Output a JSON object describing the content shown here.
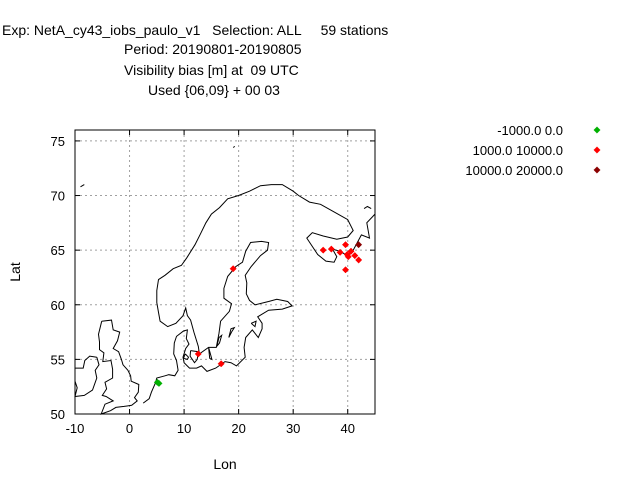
{
  "header": {
    "line1": "Exp: NetA_cy43_iobs_paulo_v1   Selection: ALL     59 stations",
    "line2": "Period: 20190801-20190805",
    "line3": "Visibility bias [m] at  09 UTC",
    "line4": "Used {06,09} + 00 03"
  },
  "chart_data": {
    "type": "scatter",
    "xlabel": "Lon",
    "ylabel": "Lat",
    "xlim": [
      -10,
      45
    ],
    "ylim": [
      50,
      76
    ],
    "xticks": [
      "-10",
      "0",
      "10",
      "20",
      "30",
      "40"
    ],
    "yticks": [
      "50",
      "55",
      "60",
      "65",
      "70",
      "75"
    ],
    "xtick_values": [
      -10,
      0,
      10,
      20,
      30,
      40
    ],
    "ytick_values": [
      50,
      55,
      60,
      65,
      70,
      75
    ],
    "grid": true,
    "legend_position": "right-outside",
    "series": [
      {
        "name": "-1000.0 0.0",
        "color": "#00b000",
        "points": [
          [
            5.1,
            52.9
          ],
          [
            5.4,
            52.8
          ]
        ]
      },
      {
        "name": "1000.0 10000.0",
        "color": "#ff0000",
        "points": [
          [
            12.6,
            55.5
          ],
          [
            16.8,
            54.6
          ],
          [
            19.0,
            63.3
          ],
          [
            35.5,
            65.0
          ],
          [
            37.0,
            65.1
          ],
          [
            38.6,
            64.8
          ],
          [
            39.6,
            65.5
          ],
          [
            39.9,
            64.6
          ],
          [
            40.6,
            64.9
          ],
          [
            40.1,
            64.4
          ],
          [
            41.3,
            64.5
          ],
          [
            42.0,
            64.1
          ],
          [
            39.6,
            63.2
          ]
        ]
      },
      {
        "name": "10000.0 20000.0",
        "color": "#8b0000",
        "points": [
          [
            42.0,
            65.5
          ]
        ]
      }
    ]
  }
}
